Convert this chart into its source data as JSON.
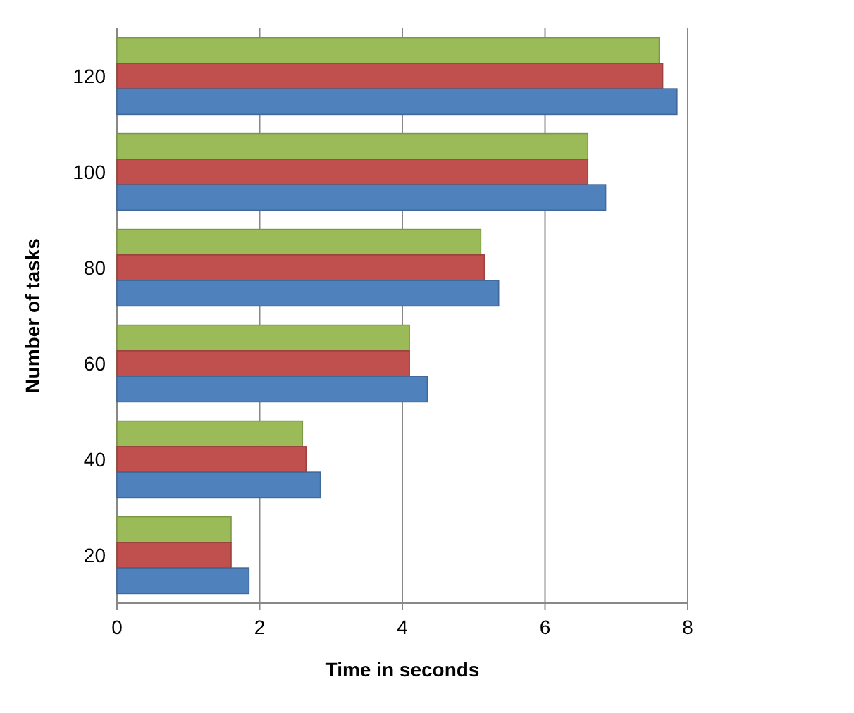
{
  "chart_data": {
    "type": "bar",
    "orientation": "horizontal",
    "xlabel": "Time in seconds",
    "ylabel": "Number of tasks",
    "categories": [
      "120",
      "100",
      "80",
      "60",
      "40",
      "20"
    ],
    "series": [
      {
        "color": "#9bbb59",
        "values": [
          7.6,
          6.6,
          5.1,
          4.1,
          2.6,
          1.6
        ]
      },
      {
        "color": "#c0504d",
        "values": [
          7.65,
          6.6,
          5.15,
          4.1,
          2.65,
          1.6
        ]
      },
      {
        "color": "#4f81bd",
        "values": [
          7.85,
          6.85,
          5.35,
          4.35,
          2.85,
          1.85
        ]
      }
    ],
    "xlim": [
      0,
      8
    ],
    "xticks": [
      0,
      2,
      4,
      6,
      8
    ],
    "grid": "x"
  }
}
